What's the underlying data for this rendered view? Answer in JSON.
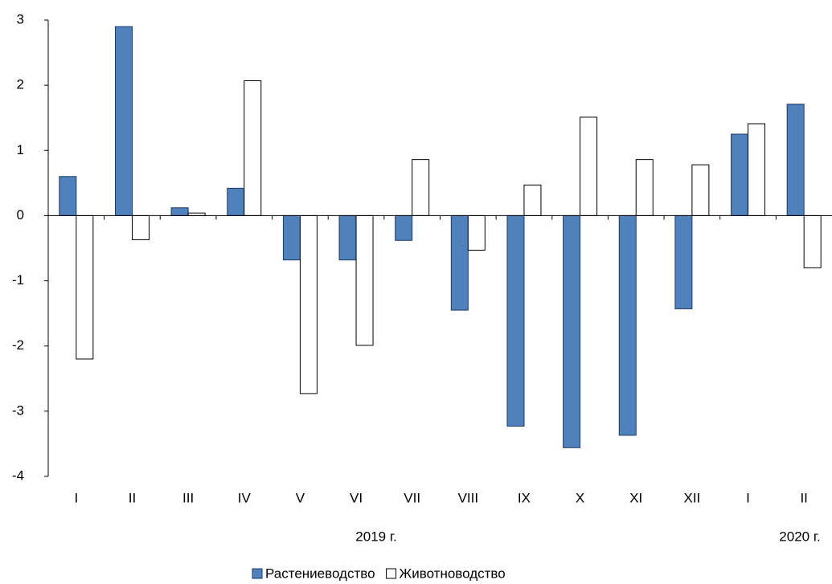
{
  "chart_data": {
    "type": "bar",
    "categories": [
      "I",
      "II",
      "III",
      "IV",
      "V",
      "VI",
      "VII",
      "VIII",
      "IX",
      "X",
      "XI",
      "XII",
      "I",
      "II"
    ],
    "series": [
      {
        "name": "Растениеводство",
        "color": "#4f81bd",
        "values": [
          0.6,
          2.9,
          0.12,
          0.42,
          -0.68,
          -0.68,
          -0.38,
          -1.45,
          -3.23,
          -3.56,
          -3.37,
          -1.43,
          1.25,
          1.71
        ]
      },
      {
        "name": "Животноводство",
        "color": "#ffffff",
        "values": [
          -2.2,
          -0.37,
          0.04,
          2.07,
          -2.73,
          -1.99,
          0.86,
          -0.53,
          0.47,
          1.51,
          0.86,
          0.78,
          1.41,
          -0.8
        ]
      }
    ],
    "year_labels": [
      "2019 г.",
      "2020 г."
    ],
    "ylim": [
      -4,
      3
    ],
    "yticks": [
      -4,
      -3,
      -2,
      -1,
      0,
      1,
      2,
      3
    ],
    "grid": false
  }
}
